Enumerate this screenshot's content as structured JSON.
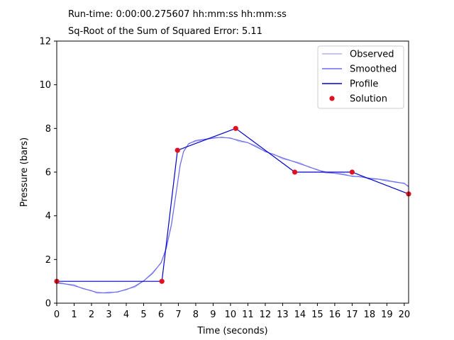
{
  "header": {
    "runtime": "Run-time: 0:00:00.275607 hh:mm:ss hh:mm:ss",
    "error": "Sq-Root of the Sum of Squared Error: 5.11"
  },
  "chart_data": {
    "type": "line",
    "xlabel": "Time (seconds)",
    "ylabel": "Pressure (bars)",
    "xlim": [
      0,
      20.25
    ],
    "ylim": [
      0,
      12
    ],
    "xticks": [
      0,
      1,
      2,
      3,
      4,
      5,
      6,
      7,
      8,
      9,
      10,
      11,
      12,
      13,
      14,
      15,
      16,
      17,
      18,
      19,
      20
    ],
    "yticks": [
      0,
      2,
      4,
      6,
      8,
      10,
      12
    ],
    "grid": false,
    "legend_position": "top-right",
    "colors": {
      "observed": "#b0b0f5",
      "smoothed": "#6a6af0",
      "profile": "#0000cc",
      "solution": "#e01020"
    },
    "series": [
      {
        "name": "Observed",
        "type": "line",
        "x": [
          0,
          0.5,
          1,
          1.5,
          2,
          2.3,
          2.7,
          3,
          3.5,
          4,
          4.5,
          5,
          5.5,
          6,
          6.3,
          6.6,
          6.9,
          7.1,
          7.3,
          7.6,
          8,
          8.5,
          9,
          9.5,
          10,
          10.5,
          11,
          11.5,
          12,
          12.5,
          13,
          13.5,
          14,
          14.5,
          15,
          15.5,
          16,
          16.5,
          17,
          17.5,
          18,
          18.5,
          19,
          19.5,
          20,
          20.25
        ],
        "y": [
          0.95,
          0.88,
          0.8,
          0.68,
          0.56,
          0.5,
          0.47,
          0.47,
          0.52,
          0.62,
          0.78,
          1.02,
          1.35,
          1.85,
          2.5,
          3.6,
          5.2,
          6.3,
          6.95,
          7.3,
          7.45,
          7.5,
          7.55,
          7.6,
          7.55,
          7.45,
          7.35,
          7.15,
          6.95,
          6.8,
          6.65,
          6.52,
          6.38,
          6.25,
          6.1,
          6.0,
          5.95,
          5.88,
          5.82,
          5.78,
          5.72,
          5.68,
          5.6,
          5.55,
          5.48,
          5.35
        ]
      },
      {
        "name": "Smoothed",
        "type": "line",
        "x": [
          0,
          0.5,
          1,
          1.5,
          2,
          2.3,
          2.7,
          3,
          3.5,
          4,
          4.5,
          5,
          5.5,
          6,
          6.3,
          6.6,
          6.9,
          7.1,
          7.3,
          7.6,
          8,
          8.5,
          9,
          9.5,
          10,
          10.5,
          11,
          11.5,
          12,
          12.5,
          13,
          13.5,
          14,
          14.5,
          15,
          15.5,
          16,
          16.5,
          17,
          17.5,
          18,
          18.5,
          19,
          19.5,
          20,
          20.25
        ],
        "y": [
          0.95,
          0.88,
          0.8,
          0.68,
          0.56,
          0.5,
          0.47,
          0.47,
          0.52,
          0.62,
          0.78,
          1.02,
          1.35,
          1.85,
          2.5,
          3.6,
          5.2,
          6.3,
          6.95,
          7.3,
          7.45,
          7.5,
          7.55,
          7.6,
          7.55,
          7.45,
          7.35,
          7.15,
          6.95,
          6.8,
          6.65,
          6.52,
          6.38,
          6.25,
          6.1,
          6.0,
          5.95,
          5.88,
          5.82,
          5.78,
          5.72,
          5.68,
          5.6,
          5.55,
          5.48,
          5.35
        ]
      },
      {
        "name": "Profile",
        "type": "line",
        "x": [
          0,
          6.05,
          6.95,
          10.3,
          13.7,
          17.0,
          20.25
        ],
        "y": [
          1.0,
          1.0,
          7.0,
          8.0,
          6.0,
          6.0,
          5.0
        ]
      },
      {
        "name": "Solution",
        "type": "scatter",
        "x": [
          0,
          6.05,
          6.95,
          10.3,
          13.7,
          17.0,
          20.25
        ],
        "y": [
          1.0,
          1.0,
          7.0,
          8.0,
          6.0,
          6.0,
          5.0
        ]
      }
    ]
  }
}
